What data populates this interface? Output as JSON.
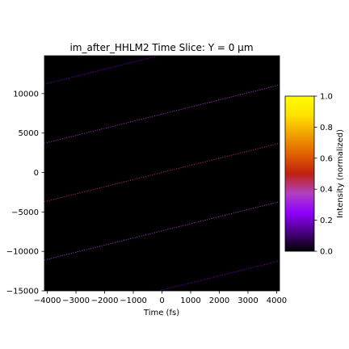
{
  "chart_data": {
    "type": "heatmap",
    "title": "im_after_HHLM2 Time Slice: Y = 0 μm",
    "xlabel": "Time (fs)",
    "ylabel": "",
    "xlim": [
      -4100,
      4100
    ],
    "ylim": [
      -15000,
      14800
    ],
    "x_ticks": [
      -4000,
      -3000,
      -2000,
      -1000,
      0,
      1000,
      2000,
      3000,
      4000
    ],
    "x_tick_labels": [
      "−4000",
      "−3000",
      "−2000",
      "−1000",
      "0",
      "1000",
      "2000",
      "3000",
      "4000"
    ],
    "y_ticks": [
      -15000,
      -10000,
      -5000,
      0,
      5000,
      10000
    ],
    "y_tick_labels": [
      "−15000",
      "−10000",
      "−5000",
      "0",
      "5000",
      "10000"
    ],
    "background_color": "#000000",
    "colormap": "gnuplot",
    "fringes": [
      {
        "x0": -4100,
        "y0": 11200,
        "x1": 4100,
        "y1": 18600,
        "intensity": 0.2
      },
      {
        "x0": -4100,
        "y0": 3700,
        "x1": 4100,
        "y1": 11100,
        "intensity": 0.35
      },
      {
        "x0": -4100,
        "y0": -3700,
        "x1": 4100,
        "y1": 3700,
        "intensity": 0.45
      },
      {
        "x0": -4100,
        "y0": -11100,
        "x1": 4100,
        "y1": -3700,
        "intensity": 0.35
      },
      {
        "x0": -4100,
        "y0": -18600,
        "x1": 4100,
        "y1": -11200,
        "intensity": 0.2
      }
    ],
    "colorbar": {
      "label": "Intensity (normalized)",
      "range": [
        0.0,
        1.0
      ],
      "ticks": [
        0.0,
        0.2,
        0.4,
        0.6,
        0.8,
        1.0
      ],
      "tick_labels": [
        "0.0",
        "0.2",
        "0.4",
        "0.6",
        "0.8",
        "1.0"
      ],
      "colors": [
        "#000000",
        "#4b0082",
        "#9000ff",
        "#b040c0",
        "#c02010",
        "#e06000",
        "#f0a000",
        "#ffe000",
        "#ffff00"
      ]
    }
  }
}
